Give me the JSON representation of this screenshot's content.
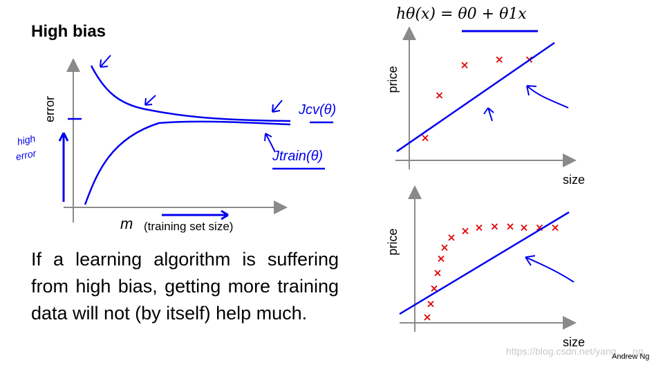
{
  "title": "High bias",
  "formula": "hθ(x) = θ0 + θ1x",
  "paragraph": "If a learning algorithm is suffering from high bias, getting more training data will not (by itself) help much.",
  "left_plot": {
    "ylabel": "error",
    "xlabel_var": "m",
    "xlabel_text": "(training set size)",
    "curve_cv": "Jcv(θ)",
    "curve_train": "Jtrain(θ)",
    "high_error_note": [
      "high",
      "error"
    ]
  },
  "top_plot": {
    "ylabel": "price",
    "xlabel": "size",
    "points": [
      [
        0.18,
        0.2
      ],
      [
        0.27,
        0.58
      ],
      [
        0.43,
        0.85
      ],
      [
        0.65,
        0.9
      ],
      [
        0.84,
        0.9
      ]
    ],
    "fit": [
      [
        0.0,
        0.08
      ],
      [
        1.0,
        1.05
      ]
    ]
  },
  "bottom_plot": {
    "ylabel": "price",
    "xlabel": "size",
    "points": [
      [
        0.16,
        0.05
      ],
      [
        0.18,
        0.17
      ],
      [
        0.2,
        0.31
      ],
      [
        0.22,
        0.45
      ],
      [
        0.24,
        0.58
      ],
      [
        0.26,
        0.68
      ],
      [
        0.3,
        0.77
      ],
      [
        0.38,
        0.83
      ],
      [
        0.46,
        0.86
      ],
      [
        0.55,
        0.87
      ],
      [
        0.64,
        0.87
      ],
      [
        0.72,
        0.86
      ],
      [
        0.81,
        0.86
      ],
      [
        0.9,
        0.86
      ]
    ],
    "fit": [
      [
        0.0,
        0.08
      ],
      [
        0.98,
        1.0
      ]
    ]
  },
  "credit": "Andrew Ng",
  "watermark": "https://blog.csdn.net/yang___ng",
  "colors": {
    "ink": "#0000ee",
    "points": "#e00000",
    "axis": "#8a8a8a"
  }
}
